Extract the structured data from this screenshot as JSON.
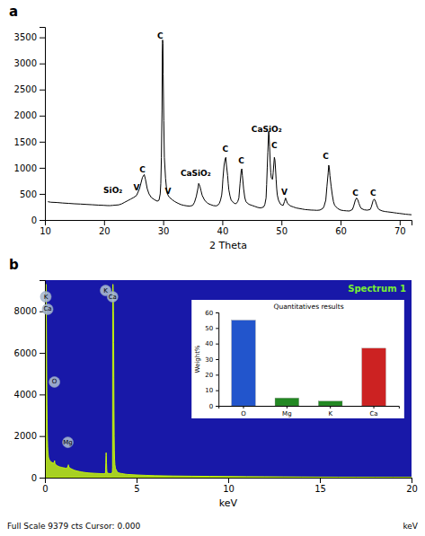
{
  "chart_data": [
    {
      "type": "line",
      "title": "a",
      "xlabel": "2 Theta",
      "color": "black",
      "xlim": [
        10,
        72
      ],
      "ylim": [
        0,
        3700
      ],
      "xticks": [
        10,
        20,
        30,
        40,
        50,
        60,
        70
      ],
      "yticks": [
        0,
        500,
        1000,
        1500,
        2000,
        2500,
        3000,
        3500
      ],
      "x": [
        10.5,
        11.0,
        12.0,
        13.0,
        14.0,
        15.0,
        16.0,
        17.0,
        18.0,
        19.0,
        20.0,
        20.5,
        21.0,
        21.5,
        22.0,
        22.5,
        23.0,
        23.5,
        24.0,
        24.5,
        25.0,
        25.5,
        26.0,
        26.5,
        26.8,
        27.0,
        27.3,
        27.6,
        28.0,
        28.5,
        29.0,
        29.3,
        29.5,
        29.6,
        29.7,
        29.8,
        29.85,
        29.9,
        29.95,
        30.0,
        30.1,
        30.2,
        30.4,
        30.6,
        30.8,
        31.0,
        31.5,
        32.0,
        32.5,
        33.0,
        33.5,
        34.0,
        34.5,
        35.0,
        35.3,
        35.6,
        35.9,
        36.0,
        36.2,
        36.4,
        36.6,
        37.0,
        37.5,
        38.0,
        38.5,
        39.0,
        39.3,
        39.5,
        39.7,
        39.9,
        40.0,
        40.1,
        40.3,
        40.5,
        40.6,
        40.7,
        40.9,
        41.0,
        41.1,
        41.3,
        41.5,
        42.0,
        42.3,
        42.6,
        42.8,
        43.0,
        43.2,
        43.3,
        43.4,
        43.6,
        43.8,
        44.0,
        44.5,
        45.0,
        45.5,
        46.0,
        46.5,
        47.0,
        47.2,
        47.4,
        47.5,
        47.6,
        47.7,
        47.8,
        47.85,
        47.9,
        48.0,
        48.1,
        48.2,
        48.3,
        48.5,
        48.6,
        48.7,
        48.8,
        48.9,
        49.0,
        49.1,
        49.2,
        49.3,
        49.5,
        49.8,
        50.0,
        50.3,
        50.5,
        50.7,
        50.8,
        51.0,
        51.5,
        52.0,
        52.5,
        53.0,
        53.5,
        54.0,
        54.5,
        55.0,
        55.5,
        56.0,
        56.5,
        57.0,
        57.2,
        57.5,
        57.7,
        57.9,
        58.0,
        58.1,
        58.2,
        58.4,
        58.6,
        58.8,
        59.0,
        59.5,
        60.0,
        60.5,
        61.0,
        61.5,
        62.0,
        62.2,
        62.5,
        62.7,
        62.9,
        63.1,
        63.3,
        63.5,
        64.0,
        64.5,
        65.0,
        65.2,
        65.5,
        65.7,
        65.9,
        66.1,
        66.3,
        66.5,
        67.0,
        67.5,
        68.0,
        68.5,
        69.0,
        69.5,
        70.0,
        70.5,
        71.0,
        71.5,
        72.0
      ],
      "values": [
        350,
        340,
        335,
        325,
        318,
        310,
        305,
        298,
        292,
        285,
        280,
        276,
        275,
        280,
        285,
        290,
        310,
        340,
        370,
        400,
        430,
        470,
        600,
        820,
        870,
        780,
        600,
        500,
        430,
        390,
        360,
        380,
        500,
        700,
        1200,
        2100,
        3200,
        3450,
        3380,
        2800,
        1900,
        1200,
        800,
        560,
        480,
        440,
        390,
        350,
        320,
        295,
        280,
        270,
        265,
        280,
        340,
        450,
        620,
        700,
        650,
        560,
        470,
        380,
        320,
        295,
        275,
        270,
        290,
        320,
        380,
        480,
        600,
        780,
        1050,
        1180,
        1200,
        1050,
        850,
        700,
        580,
        460,
        380,
        320,
        310,
        350,
        420,
        700,
        950,
        980,
        850,
        600,
        430,
        350,
        300,
        280,
        260,
        240,
        230,
        250,
        300,
        420,
        680,
        1000,
        1300,
        1600,
        1700,
        1650,
        1400,
        1100,
        900,
        800,
        780,
        900,
        1050,
        1200,
        1150,
        980,
        780,
        600,
        480,
        380,
        310,
        290,
        280,
        350,
        420,
        390,
        320,
        270,
        250,
        230,
        220,
        210,
        200,
        195,
        190,
        188,
        185,
        190,
        220,
        260,
        380,
        650,
        900,
        1050,
        1000,
        850,
        650,
        480,
        350,
        280,
        220,
        190,
        180,
        175,
        172,
        200,
        260,
        380,
        420,
        390,
        320,
        260,
        220,
        195,
        188,
        200,
        250,
        370,
        400,
        360,
        290,
        230,
        200,
        175,
        162,
        155,
        148,
        140,
        132,
        125,
        118,
        110,
        105,
        100
      ],
      "annotations": [
        {
          "label": "C",
          "x": 26.5,
          "y": 870
        },
        {
          "label": "SiO₂",
          "x": 21.5,
          "y": 490
        },
        {
          "label": "V",
          "x": 25.5,
          "y": 530
        },
        {
          "label": "V",
          "x": 30.8,
          "y": 470
        },
        {
          "label": "C",
          "x": 29.5,
          "y": 3450
        },
        {
          "label": "CaSiO₂",
          "x": 35.5,
          "y": 810
        },
        {
          "label": "C",
          "x": 40.5,
          "y": 1270
        },
        {
          "label": "C",
          "x": 43.2,
          "y": 1050
        },
        {
          "label": "CaSiO₂",
          "x": 47.5,
          "y": 1650
        },
        {
          "label": "C",
          "x": 48.8,
          "y": 1350
        },
        {
          "label": "V",
          "x": 50.5,
          "y": 440
        },
        {
          "label": "C",
          "x": 57.5,
          "y": 1130
        },
        {
          "label": "C",
          "x": 62.5,
          "y": 430
        },
        {
          "label": "C",
          "x": 65.5,
          "y": 430
        }
      ]
    },
    {
      "type": "area",
      "title": "b",
      "subtitle": "Spectrum 1",
      "xlabel": "keV",
      "color": "#ccff00",
      "xlim": [
        0,
        20
      ],
      "ylim": [
        0,
        9500
      ],
      "xticks": [
        0,
        5,
        10,
        15,
        20
      ],
      "yticks": [
        0,
        2000,
        4000,
        6000,
        8000
      ],
      "x": [
        0.0,
        0.03,
        0.05,
        0.06,
        0.065,
        0.07,
        0.08,
        0.09,
        0.1,
        0.11,
        0.12,
        0.13,
        0.14,
        0.15,
        0.16,
        0.17,
        0.18,
        0.19,
        0.2,
        0.22,
        0.25,
        0.28,
        0.3,
        0.35,
        0.4,
        0.45,
        0.5,
        0.52,
        0.525,
        0.53,
        0.54,
        0.55,
        0.6,
        0.65,
        0.7,
        0.75,
        0.8,
        0.85,
        0.9,
        0.95,
        1.0,
        1.05,
        1.1,
        1.15,
        1.2,
        1.25,
        1.27,
        1.28,
        1.29,
        1.3,
        1.35,
        1.4,
        1.5,
        1.6,
        1.7,
        1.8,
        1.9,
        2.0,
        2.1,
        2.2,
        2.3,
        2.4,
        2.5,
        2.6,
        2.7,
        2.8,
        2.9,
        3.0,
        3.1,
        3.2,
        3.3,
        3.31,
        3.32,
        3.33,
        3.34,
        3.35,
        3.36,
        3.37,
        3.38,
        3.4,
        3.5,
        3.6,
        3.65,
        3.68,
        3.69,
        3.7,
        3.71,
        3.72,
        3.73,
        3.74,
        3.75,
        3.76,
        3.77,
        3.78,
        3.79,
        3.8,
        3.82,
        3.85,
        3.9,
        3.95,
        4.0,
        4.1,
        4.2,
        4.3,
        4.4,
        4.5,
        5.0,
        5.5,
        6.0,
        7.0,
        8.0,
        9.0,
        10.0,
        11.0,
        12.0,
        13.0,
        14.0,
        15.0,
        16.0,
        17.0,
        18.0,
        19.0,
        20.0
      ],
      "values": [
        100,
        200,
        9200,
        9300,
        9100,
        8500,
        7500,
        6000,
        4500,
        3500,
        2800,
        2200,
        1800,
        1500,
        1300,
        1200,
        1100,
        1000,
        950,
        900,
        850,
        800,
        780,
        750,
        720,
        700,
        720,
        780,
        820,
        780,
        720,
        680,
        620,
        580,
        560,
        540,
        520,
        510,
        500,
        490,
        480,
        470,
        460,
        450,
        460,
        520,
        580,
        620,
        580,
        520,
        470,
        440,
        400,
        360,
        330,
        310,
        290,
        275,
        260,
        245,
        235,
        225,
        220,
        215,
        210,
        205,
        200,
        195,
        192,
        190,
        200,
        380,
        700,
        1050,
        1200,
        1050,
        700,
        450,
        300,
        220,
        200,
        195,
        200,
        280,
        500,
        9100,
        9300,
        9200,
        8800,
        8000,
        6500,
        4800,
        3200,
        2000,
        1300,
        900,
        620,
        450,
        350,
        280,
        240,
        210,
        195,
        180,
        165,
        155,
        130,
        110,
        95,
        80,
        70,
        62,
        55,
        48,
        42,
        36,
        30,
        25,
        22,
        18,
        15,
        12,
        10
      ],
      "annotations": [
        {
          "label": "K",
          "x": 0.05,
          "y": 8700
        },
        {
          "label": "Ca",
          "x": 0.15,
          "y": 8100
        },
        {
          "label": "O",
          "x": 0.52,
          "y": 4600
        },
        {
          "label": "Mg",
          "x": 1.25,
          "y": 1700
        },
        {
          "label": "K",
          "x": 3.31,
          "y": 9000
        },
        {
          "label": "Ca",
          "x": 3.69,
          "y": 8700
        }
      ],
      "footer": [
        "Full Scale 9379 cts Cursor: 0.000",
        "keV"
      ]
    },
    {
      "type": "bar",
      "title": "Quantitatives results",
      "ylabel": "Weight%",
      "categories": [
        "O",
        "Mg",
        "K",
        "Ca"
      ],
      "values": [
        55,
        5,
        3,
        37
      ],
      "colors": [
        "#2255cc",
        "#228822",
        "#228822",
        "#cc2222"
      ],
      "ylim": [
        0,
        60
      ],
      "yticks": [
        0,
        10,
        20,
        30,
        40,
        50,
        60
      ]
    }
  ]
}
